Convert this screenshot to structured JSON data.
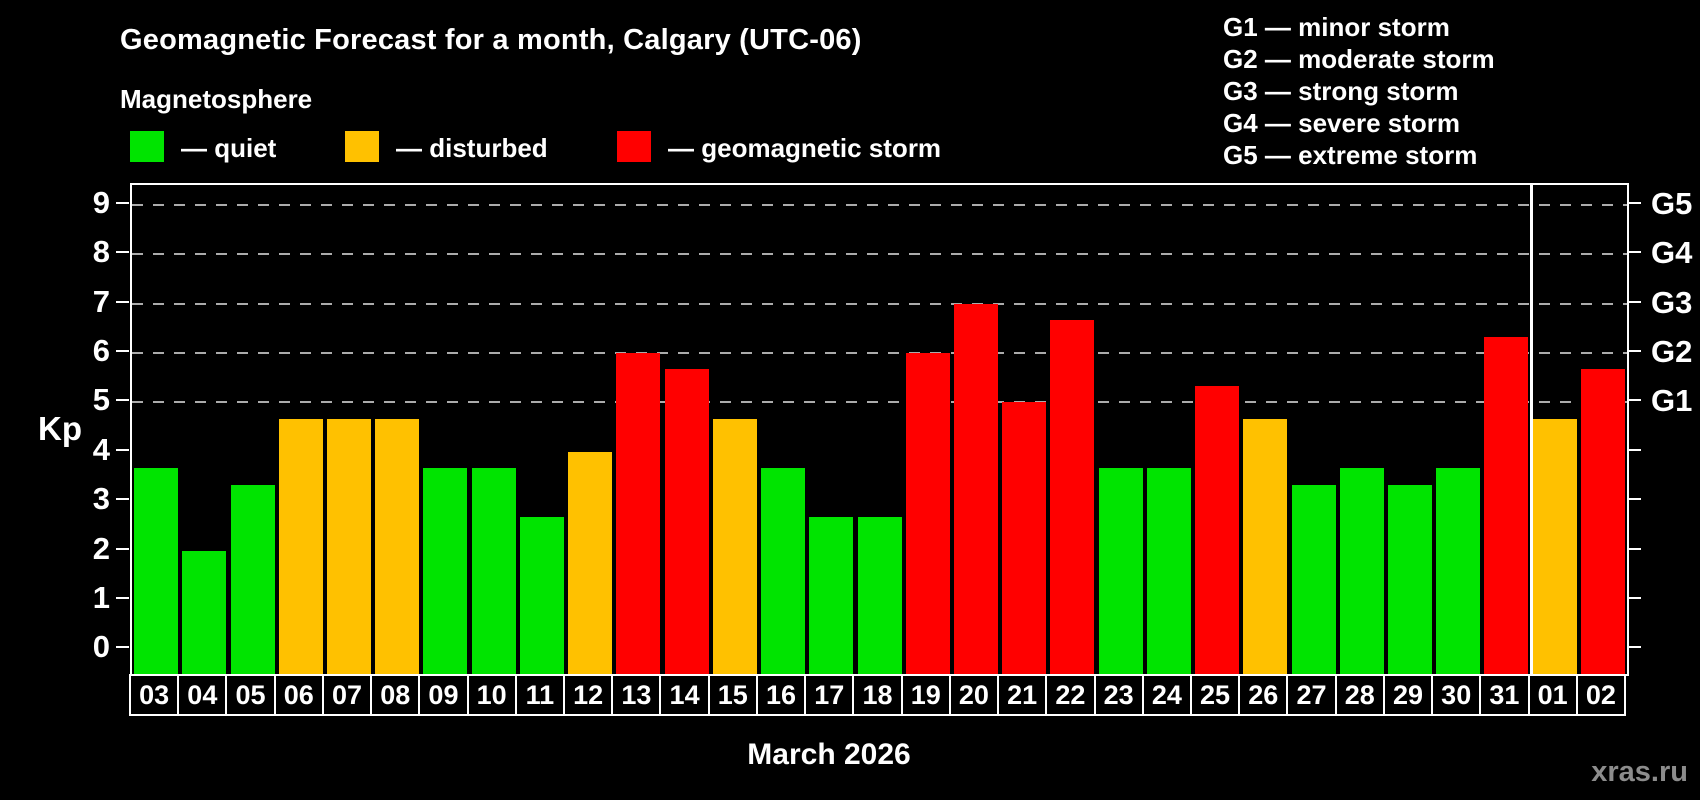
{
  "header": {
    "title": "Geomagnetic Forecast for a month, Calgary (UTC-06)",
    "subtitle": "Magnetosphere"
  },
  "legend": {
    "items": [
      {
        "key": "quiet",
        "label": "— quiet"
      },
      {
        "key": "disturbed",
        "label": "— disturbed"
      },
      {
        "key": "storm",
        "label": "— geomagnetic storm"
      }
    ]
  },
  "g_legend": {
    "items": [
      "G1 — minor storm",
      "G2 — moderate storm",
      "G3 — strong storm",
      "G4 — severe storm",
      "G5 — extreme storm"
    ]
  },
  "colors": {
    "quiet": "#00e400",
    "disturbed": "#ffc100",
    "storm": "#ff0000",
    "background": "#000000",
    "axis": "#ffffff",
    "gridline": "#ababab",
    "watermark": "#8c8c8c"
  },
  "chart_data": {
    "type": "bar",
    "title": "Geomagnetic Forecast for a month, Calgary (UTC-06)",
    "ylabel": "Kp",
    "xlabel": "March 2026",
    "ylim": [
      -0.5,
      9.4
    ],
    "yticks": [
      0,
      1,
      2,
      3,
      4,
      5,
      6,
      7,
      8,
      9
    ],
    "gridlines": [
      5,
      6,
      7,
      8,
      9
    ],
    "grid_style": "dashed",
    "legend_position": "top",
    "right_axis_labels": [
      {
        "value": 5,
        "label": "G1"
      },
      {
        "value": 6,
        "label": "G2"
      },
      {
        "value": 7,
        "label": "G3"
      },
      {
        "value": 8,
        "label": "G4"
      },
      {
        "value": 9,
        "label": "G5"
      }
    ],
    "month_separator_after_index": 28,
    "categories": [
      "03",
      "04",
      "05",
      "06",
      "07",
      "08",
      "09",
      "10",
      "11",
      "12",
      "13",
      "14",
      "15",
      "16",
      "17",
      "18",
      "19",
      "20",
      "21",
      "22",
      "23",
      "24",
      "25",
      "26",
      "27",
      "28",
      "29",
      "30",
      "31",
      "01",
      "02"
    ],
    "values": [
      3.67,
      2.0,
      3.33,
      4.67,
      4.67,
      4.67,
      3.67,
      3.67,
      2.67,
      4.0,
      6.0,
      5.67,
      4.67,
      3.67,
      2.67,
      2.67,
      6.0,
      7.0,
      5.0,
      6.67,
      3.67,
      3.67,
      5.33,
      4.67,
      3.33,
      3.67,
      3.33,
      3.67,
      6.33,
      4.67,
      5.67
    ],
    "statuses": [
      "quiet",
      "quiet",
      "quiet",
      "disturbed",
      "disturbed",
      "disturbed",
      "quiet",
      "quiet",
      "quiet",
      "disturbed",
      "storm",
      "storm",
      "disturbed",
      "quiet",
      "quiet",
      "quiet",
      "storm",
      "storm",
      "storm",
      "storm",
      "quiet",
      "quiet",
      "storm",
      "disturbed",
      "quiet",
      "quiet",
      "quiet",
      "quiet",
      "storm",
      "disturbed",
      "storm"
    ]
  },
  "footer": {
    "watermark": "xras.ru"
  }
}
